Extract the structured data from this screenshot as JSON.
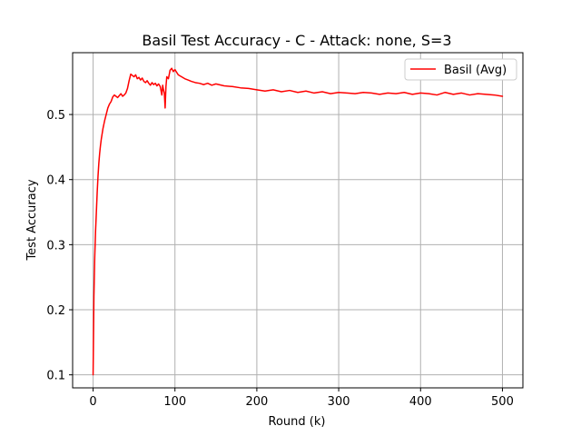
{
  "chart_data": {
    "type": "line",
    "title": "Basil Test Accuracy - C - Attack: none, S=3",
    "xlabel": "Round (k)",
    "ylabel": "Test Accuracy",
    "xlim": [
      -25,
      525
    ],
    "ylim": [
      0.08,
      0.595
    ],
    "xticks": [
      0,
      100,
      200,
      300,
      400,
      500
    ],
    "yticks": [
      0.1,
      0.2,
      0.3,
      0.4,
      0.5
    ],
    "ytick_labels": [
      "0.1",
      "0.2",
      "0.3",
      "0.4",
      "0.5"
    ],
    "grid": true,
    "legend": {
      "position": "top-right"
    },
    "series": [
      {
        "name": "Basil (Avg)",
        "color": "#ff0000",
        "x": [
          0,
          1,
          2,
          3,
          4,
          5,
          6,
          7,
          8,
          9,
          10,
          12,
          14,
          16,
          18,
          20,
          22,
          24,
          26,
          28,
          30,
          32,
          34,
          36,
          38,
          40,
          42,
          44,
          46,
          48,
          50,
          52,
          54,
          56,
          58,
          60,
          62,
          64,
          66,
          68,
          70,
          72,
          74,
          76,
          78,
          80,
          82,
          84,
          85,
          86,
          87,
          88,
          89,
          90,
          92,
          94,
          96,
          98,
          100,
          104,
          108,
          112,
          116,
          120,
          125,
          130,
          135,
          140,
          145,
          150,
          160,
          170,
          180,
          190,
          200,
          210,
          220,
          230,
          240,
          250,
          260,
          270,
          280,
          290,
          300,
          310,
          320,
          330,
          340,
          350,
          360,
          370,
          380,
          390,
          400,
          410,
          420,
          430,
          440,
          450,
          460,
          470,
          480,
          490,
          500
        ],
        "y": [
          0.1,
          0.22,
          0.28,
          0.32,
          0.35,
          0.38,
          0.405,
          0.425,
          0.44,
          0.452,
          0.462,
          0.478,
          0.49,
          0.5,
          0.51,
          0.516,
          0.52,
          0.527,
          0.53,
          0.528,
          0.526,
          0.529,
          0.532,
          0.528,
          0.53,
          0.533,
          0.54,
          0.552,
          0.562,
          0.56,
          0.558,
          0.561,
          0.555,
          0.557,
          0.553,
          0.556,
          0.551,
          0.549,
          0.552,
          0.548,
          0.545,
          0.549,
          0.546,
          0.548,
          0.544,
          0.547,
          0.543,
          0.53,
          0.545,
          0.538,
          0.533,
          0.51,
          0.543,
          0.558,
          0.555,
          0.568,
          0.571,
          0.566,
          0.569,
          0.561,
          0.558,
          0.555,
          0.553,
          0.551,
          0.549,
          0.548,
          0.546,
          0.548,
          0.545,
          0.547,
          0.544,
          0.543,
          0.541,
          0.54,
          0.538,
          0.536,
          0.538,
          0.535,
          0.537,
          0.534,
          0.536,
          0.533,
          0.535,
          0.532,
          0.534,
          0.533,
          0.532,
          0.534,
          0.533,
          0.531,
          0.533,
          0.532,
          0.534,
          0.531,
          0.533,
          0.532,
          0.53,
          0.534,
          0.531,
          0.533,
          0.53,
          0.532,
          0.531,
          0.53,
          0.528
        ]
      }
    ]
  }
}
